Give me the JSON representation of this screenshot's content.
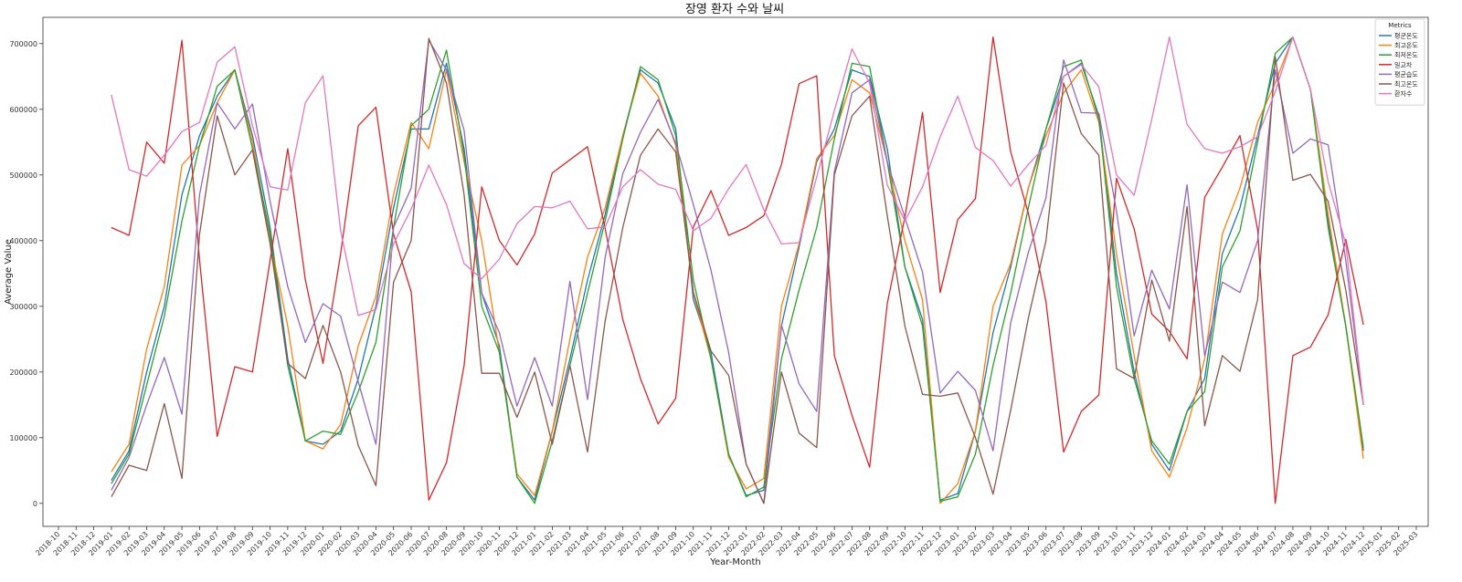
{
  "chart_data": {
    "type": "line",
    "title": "장영 환자 수와 날씨",
    "xlabel": "Year-Month",
    "ylabel": "Average Value",
    "ylim": [
      -35000,
      740000
    ],
    "yticks": [
      0,
      100000,
      200000,
      300000,
      400000,
      500000,
      600000,
      700000
    ],
    "grid": false,
    "legend": {
      "title": "Metrics",
      "placement": "top-right"
    },
    "categories": [
      "2018-10",
      "2018-11",
      "2018-12",
      "2019-01",
      "2019-02",
      "2019-03",
      "2019-04",
      "2019-05",
      "2019-06",
      "2019-07",
      "2019-08",
      "2019-09",
      "2019-10",
      "2019-11",
      "2019-12",
      "2020-01",
      "2020-02",
      "2020-03",
      "2020-04",
      "2020-05",
      "2020-06",
      "2020-07",
      "2020-08",
      "2020-09",
      "2020-10",
      "2020-11",
      "2020-12",
      "2021-01",
      "2021-02",
      "2021-03",
      "2021-04",
      "2021-05",
      "2021-06",
      "2021-07",
      "2021-08",
      "2021-09",
      "2021-10",
      "2021-11",
      "2021-12",
      "2022-01",
      "2022-02",
      "2022-03",
      "2022-04",
      "2022-05",
      "2022-06",
      "2022-07",
      "2022-08",
      "2022-09",
      "2022-10",
      "2022-11",
      "2022-12",
      "2023-01",
      "2023-02",
      "2023-03",
      "2023-04",
      "2023-05",
      "2023-06",
      "2023-07",
      "2023-08",
      "2023-09",
      "2023-10",
      "2023-11",
      "2023-12",
      "2024-01",
      "2024-02",
      "2024-03",
      "2024-04",
      "2024-05",
      "2024-06",
      "2024-07",
      "2024-08",
      "2024-09",
      "2024-10",
      "2024-11",
      "2024-12",
      "2025-01",
      "2025-02",
      "2025-03"
    ],
    "series": [
      {
        "name": "평균온도",
        "color": "#1f77b4",
        "values": [
          null,
          null,
          null,
          35000,
          80000,
          200000,
          300000,
          470000,
          560000,
          620000,
          660000,
          560000,
          420000,
          220000,
          95000,
          90000,
          110000,
          190000,
          300000,
          450000,
          570000,
          570000,
          670000,
          540000,
          320000,
          240000,
          40000,
          5000,
          110000,
          220000,
          340000,
          440000,
          560000,
          660000,
          640000,
          570000,
          310000,
          230000,
          75000,
          12000,
          20000,
          270000,
          390000,
          520000,
          570000,
          660000,
          650000,
          540000,
          360000,
          280000,
          5000,
          15000,
          110000,
          260000,
          360000,
          480000,
          570000,
          650000,
          670000,
          590000,
          350000,
          200000,
          90000,
          50000,
          140000,
          190000,
          380000,
          450000,
          560000,
          670000,
          710000,
          630000,
          430000,
          270000,
          80000,
          null,
          null,
          null
        ]
      },
      {
        "name": "최고온도",
        "color": "#ff7f0e",
        "values": [
          null,
          null,
          null,
          48000,
          90000,
          235000,
          330000,
          515000,
          545000,
          610000,
          660000,
          550000,
          400000,
          270000,
          95000,
          83000,
          120000,
          240000,
          315000,
          470000,
          580000,
          540000,
          660000,
          520000,
          400000,
          230000,
          45000,
          12000,
          110000,
          250000,
          375000,
          450000,
          560000,
          655000,
          620000,
          545000,
          320000,
          220000,
          70000,
          22000,
          38000,
          300000,
          395000,
          525000,
          560000,
          645000,
          625000,
          520000,
          400000,
          310000,
          0,
          30000,
          110000,
          300000,
          365000,
          480000,
          560000,
          625000,
          660000,
          580000,
          380000,
          225000,
          80000,
          40000,
          115000,
          220000,
          410000,
          480000,
          580000,
          640000,
          710000,
          630000,
          440000,
          270000,
          68000,
          null,
          null,
          null
        ]
      },
      {
        "name": "최저온도",
        "color": "#2ca02c",
        "values": [
          null,
          null,
          null,
          30000,
          75000,
          180000,
          285000,
          430000,
          545000,
          635000,
          660000,
          540000,
          410000,
          210000,
          95000,
          110000,
          105000,
          170000,
          245000,
          420000,
          575000,
          600000,
          690000,
          530000,
          300000,
          230000,
          40000,
          0,
          95000,
          210000,
          320000,
          430000,
          555000,
          665000,
          645000,
          560000,
          340000,
          220000,
          75000,
          10000,
          25000,
          220000,
          325000,
          420000,
          555000,
          670000,
          665000,
          520000,
          360000,
          270000,
          3000,
          10000,
          75000,
          210000,
          320000,
          450000,
          570000,
          665000,
          675000,
          585000,
          330000,
          190000,
          95000,
          60000,
          140000,
          170000,
          360000,
          415000,
          550000,
          685000,
          710000,
          630000,
          420000,
          270000,
          85000,
          null,
          null,
          null
        ]
      },
      {
        "name": "일교차",
        "color": "#d62728",
        "values": [
          null,
          null,
          null,
          420000,
          408000,
          550000,
          518000,
          705000,
          370000,
          102000,
          208000,
          200000,
          370000,
          540000,
          340000,
          213000,
          380000,
          575000,
          603000,
          410000,
          322000,
          5000,
          62000,
          210000,
          482000,
          400000,
          363000,
          410000,
          503000,
          523000,
          543000,
          418000,
          280000,
          190000,
          121000,
          160000,
          421000,
          476000,
          408000,
          420000,
          438000,
          516000,
          639000,
          651000,
          225000,
          134000,
          55000,
          304000,
          436000,
          595000,
          321000,
          432000,
          464000,
          710000,
          535000,
          442000,
          307000,
          78000,
          140000,
          165000,
          495000,
          418000,
          288000,
          262000,
          220000,
          466000,
          512000,
          560000,
          417000,
          0,
          225000,
          238000,
          287000,
          402000,
          272000,
          null,
          null,
          null
        ]
      },
      {
        "name": "평균습도",
        "color": "#9467bd",
        "values": [
          null,
          null,
          null,
          20000,
          70000,
          150000,
          222000,
          136000,
          470000,
          610000,
          570000,
          608000,
          460000,
          330000,
          245000,
          304000,
          285000,
          185000,
          90000,
          420000,
          480000,
          705000,
          660000,
          568000,
          320000,
          260000,
          148000,
          222000,
          148000,
          338000,
          158000,
          375000,
          502000,
          565000,
          615000,
          548000,
          455000,
          355000,
          230000,
          60000,
          0,
          272000,
          182000,
          140000,
          505000,
          625000,
          645000,
          520000,
          435000,
          352000,
          168000,
          201000,
          172000,
          80000,
          275000,
          382000,
          465000,
          675000,
          595000,
          594000,
          445000,
          255000,
          355000,
          296000,
          485000,
          225000,
          337000,
          321000,
          400000,
          660000,
          533000,
          555000,
          546000,
          370000,
          150000,
          null,
          null,
          null
        ]
      },
      {
        "name": "최고온도",
        "color": "#8c564b",
        "values": [
          null,
          null,
          null,
          10000,
          58000,
          50000,
          152000,
          38000,
          410000,
          590000,
          500000,
          538000,
          395000,
          213000,
          190000,
          271000,
          200000,
          88000,
          27000,
          337000,
          400000,
          708000,
          640000,
          470000,
          198000,
          198000,
          131000,
          200000,
          90000,
          210000,
          78000,
          278000,
          420000,
          530000,
          570000,
          535000,
          322000,
          232000,
          195000,
          60000,
          0,
          200000,
          107000,
          85000,
          500000,
          590000,
          620000,
          438000,
          270000,
          166000,
          163000,
          168000,
          100000,
          14000,
          142000,
          282000,
          400000,
          640000,
          563000,
          530000,
          205000,
          190000,
          340000,
          247000,
          452000,
          118000,
          225000,
          201000,
          310000,
          680000,
          492000,
          501000,
          460000,
          325000,
          150000,
          null,
          null,
          null
        ]
      },
      {
        "name": "환자수",
        "color": "#e377c2",
        "values": [
          null,
          null,
          null,
          622000,
          508000,
          498000,
          530000,
          566000,
          580000,
          672000,
          695000,
          575000,
          482000,
          477000,
          610000,
          651000,
          415000,
          286000,
          295000,
          395000,
          448000,
          515000,
          455000,
          365000,
          342000,
          372000,
          426000,
          452000,
          450000,
          460000,
          418000,
          421000,
          482000,
          508000,
          486000,
          478000,
          415000,
          434000,
          479000,
          516000,
          447000,
          395000,
          397000,
          497000,
          598000,
          692000,
          640000,
          485000,
          430000,
          482000,
          558000,
          620000,
          542000,
          522000,
          483000,
          516000,
          545000,
          650000,
          668000,
          634000,
          500000,
          469000,
          585000,
          710000,
          577000,
          540000,
          533000,
          543000,
          558000,
          627000,
          710000,
          630000,
          490000,
          395000,
          150000,
          null,
          null,
          null
        ]
      }
    ]
  }
}
